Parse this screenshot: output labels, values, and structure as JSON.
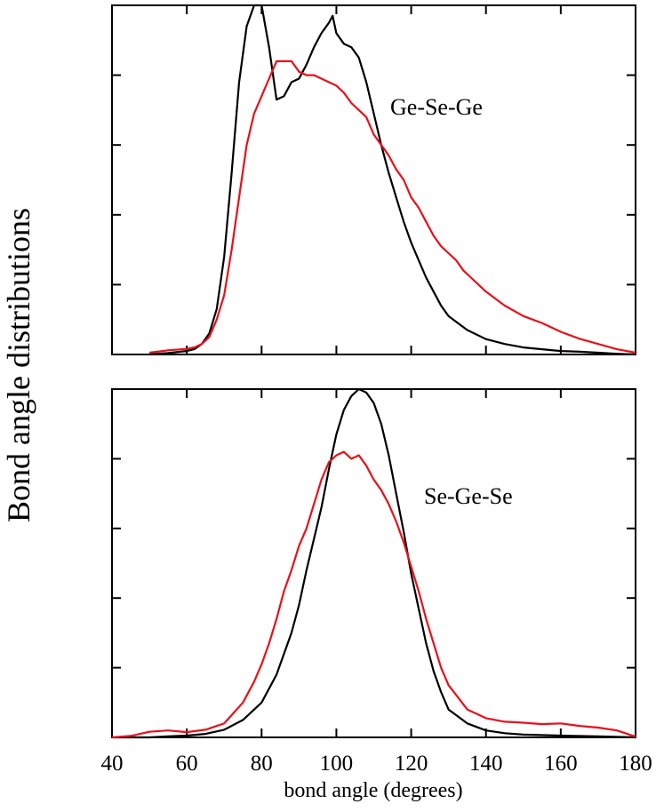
{
  "chart_data": {
    "type": "line",
    "ylabel": "Bond angle distributions",
    "xlabel": "bond angle (degrees)",
    "xlim": [
      40,
      180
    ],
    "x_ticks": [
      40,
      60,
      80,
      100,
      120,
      140,
      160,
      180
    ],
    "x_tick_labels": [
      "40",
      "60",
      "80",
      "100",
      "120",
      "140",
      "160",
      "180"
    ],
    "colors": {
      "black": "#000000",
      "red": "#e8101a"
    },
    "panels": [
      {
        "label": "Ge-Se-Ge",
        "ylim": [
          0,
          1.0
        ],
        "y_ticks": [
          0.2,
          0.4,
          0.6,
          0.8
        ],
        "series": [
          {
            "name": "black",
            "color": "#000000",
            "x": [
              50,
              55,
              60,
              62,
              64,
              66,
              68,
              70,
              72,
              74,
              76,
              78,
              80,
              82,
              84,
              86,
              88,
              90,
              92,
              94,
              96,
              98,
              99,
              100,
              102,
              104,
              106,
              108,
              110,
              112,
              114,
              116,
              118,
              120,
              122,
              124,
              126,
              128,
              130,
              135,
              140,
              145,
              150,
              155,
              160,
              165,
              170,
              175,
              180
            ],
            "y": [
              0,
              0.004,
              0.01,
              0.015,
              0.03,
              0.06,
              0.13,
              0.28,
              0.52,
              0.78,
              0.94,
              1.0,
              1.0,
              0.88,
              0.73,
              0.74,
              0.78,
              0.79,
              0.83,
              0.88,
              0.92,
              0.95,
              0.97,
              0.92,
              0.89,
              0.88,
              0.85,
              0.78,
              0.69,
              0.6,
              0.52,
              0.45,
              0.38,
              0.32,
              0.27,
              0.22,
              0.18,
              0.14,
              0.11,
              0.07,
              0.044,
              0.03,
              0.02,
              0.015,
              0.01,
              0.008,
              0.005,
              0.002,
              0
            ]
          },
          {
            "name": "red",
            "color": "#e8101a",
            "x": [
              50,
              55,
              60,
              62,
              64,
              66,
              68,
              70,
              72,
              74,
              76,
              78,
              80,
              82,
              84,
              86,
              88,
              90,
              92,
              94,
              96,
              98,
              100,
              102,
              104,
              106,
              108,
              110,
              112,
              114,
              116,
              118,
              120,
              122,
              124,
              126,
              128,
              130,
              132,
              134,
              136,
              138,
              140,
              145,
              150,
              155,
              160,
              165,
              170,
              175,
              180
            ],
            "y": [
              0.005,
              0.012,
              0.016,
              0.02,
              0.03,
              0.05,
              0.1,
              0.17,
              0.3,
              0.45,
              0.6,
              0.69,
              0.74,
              0.79,
              0.84,
              0.84,
              0.84,
              0.81,
              0.8,
              0.8,
              0.79,
              0.78,
              0.77,
              0.75,
              0.72,
              0.7,
              0.68,
              0.63,
              0.6,
              0.57,
              0.53,
              0.5,
              0.45,
              0.42,
              0.38,
              0.34,
              0.31,
              0.29,
              0.27,
              0.24,
              0.22,
              0.2,
              0.18,
              0.14,
              0.11,
              0.09,
              0.065,
              0.045,
              0.03,
              0.015,
              0.005
            ]
          }
        ]
      },
      {
        "label": "Se-Ge-Se",
        "ylim": [
          0,
          1.0
        ],
        "y_ticks": [
          0.2,
          0.4,
          0.6,
          0.8
        ],
        "series": [
          {
            "name": "black",
            "color": "#000000",
            "x": [
              40,
              45,
              50,
              55,
              60,
              65,
              70,
              75,
              80,
              84,
              88,
              90,
              92,
              94,
              96,
              98,
              100,
              102,
              104,
              106,
              108,
              110,
              112,
              114,
              116,
              118,
              120,
              122,
              124,
              126,
              128,
              130,
              135,
              140,
              145,
              150,
              160,
              170,
              180
            ],
            "y": [
              0,
              0,
              0,
              0.003,
              0.005,
              0.01,
              0.022,
              0.05,
              0.1,
              0.18,
              0.3,
              0.38,
              0.48,
              0.57,
              0.66,
              0.77,
              0.87,
              0.94,
              0.98,
              1.0,
              0.99,
              0.96,
              0.9,
              0.81,
              0.7,
              0.59,
              0.47,
              0.37,
              0.27,
              0.19,
              0.13,
              0.08,
              0.04,
              0.02,
              0.012,
              0.008,
              0.005,
              0.003,
              0
            ]
          },
          {
            "name": "red",
            "color": "#e8101a",
            "x": [
              40,
              45,
              50,
              55,
              60,
              65,
              70,
              75,
              78,
              80,
              82,
              84,
              86,
              88,
              90,
              92,
              94,
              96,
              98,
              100,
              102,
              104,
              106,
              108,
              110,
              112,
              114,
              116,
              118,
              120,
              122,
              124,
              126,
              128,
              130,
              135,
              140,
              145,
              150,
              155,
              160,
              165,
              170,
              175,
              180
            ],
            "y": [
              0,
              0.004,
              0.016,
              0.02,
              0.015,
              0.022,
              0.04,
              0.1,
              0.16,
              0.21,
              0.27,
              0.34,
              0.42,
              0.48,
              0.55,
              0.6,
              0.67,
              0.74,
              0.79,
              0.81,
              0.82,
              0.8,
              0.81,
              0.78,
              0.74,
              0.71,
              0.67,
              0.62,
              0.56,
              0.49,
              0.42,
              0.34,
              0.27,
              0.2,
              0.15,
              0.08,
              0.055,
              0.045,
              0.042,
              0.038,
              0.04,
              0.033,
              0.028,
              0.02,
              0.002
            ]
          }
        ]
      }
    ]
  }
}
